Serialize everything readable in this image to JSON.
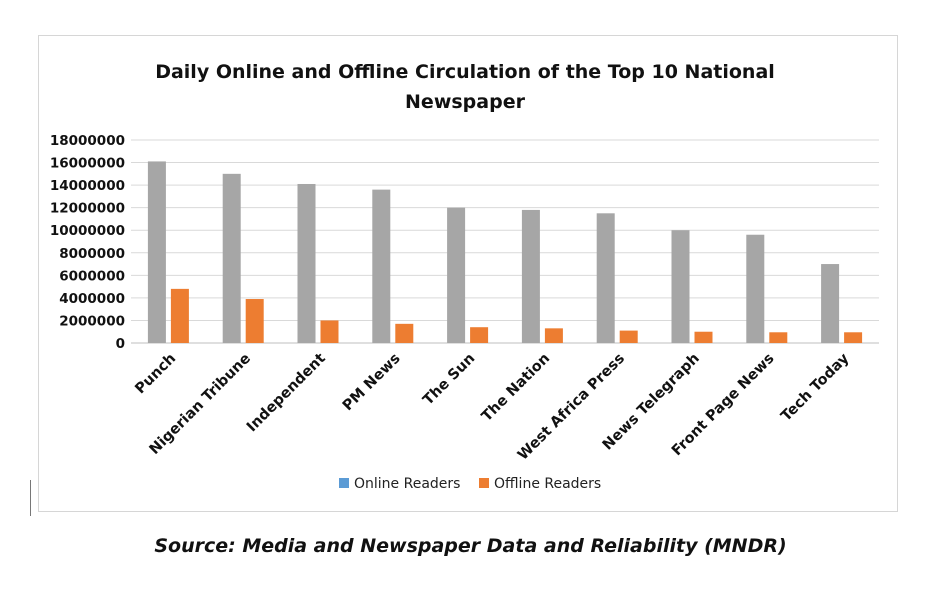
{
  "chart_data": {
    "type": "bar",
    "title_lines": [
      "Daily Online and Offline Circulation of the Top 10 National",
      "Newspaper"
    ],
    "categories": [
      "Punch",
      "Nigerian Tribune",
      "Independent",
      "PM News",
      "The Sun",
      "The Nation",
      "West Africa Press",
      "News Telegraph",
      "Front Page News",
      "Tech Today"
    ],
    "series": [
      {
        "name": "Online Readers",
        "color": "#a6a6a6",
        "legend_color": "#5b9bd5",
        "values": [
          16100000,
          15000000,
          14100000,
          13600000,
          12000000,
          11800000,
          11500000,
          10000000,
          9600000,
          7000000
        ]
      },
      {
        "name": "Offline Readers",
        "color": "#ed7d31",
        "legend_color": "#ed7d31",
        "values": [
          4800000,
          3900000,
          2000000,
          1700000,
          1400000,
          1300000,
          1100000,
          1000000,
          950000,
          950000
        ]
      }
    ],
    "yticks": [
      "0",
      "2000000",
      "4000000",
      "6000000",
      "8000000",
      "10000000",
      "12000000",
      "14000000",
      "16000000",
      "18000000"
    ],
    "ylim": [
      0,
      18000000
    ],
    "grid": true,
    "legend": "bottom"
  },
  "source": "Source: Media and Newspaper Data and Reliability (MNDR)"
}
